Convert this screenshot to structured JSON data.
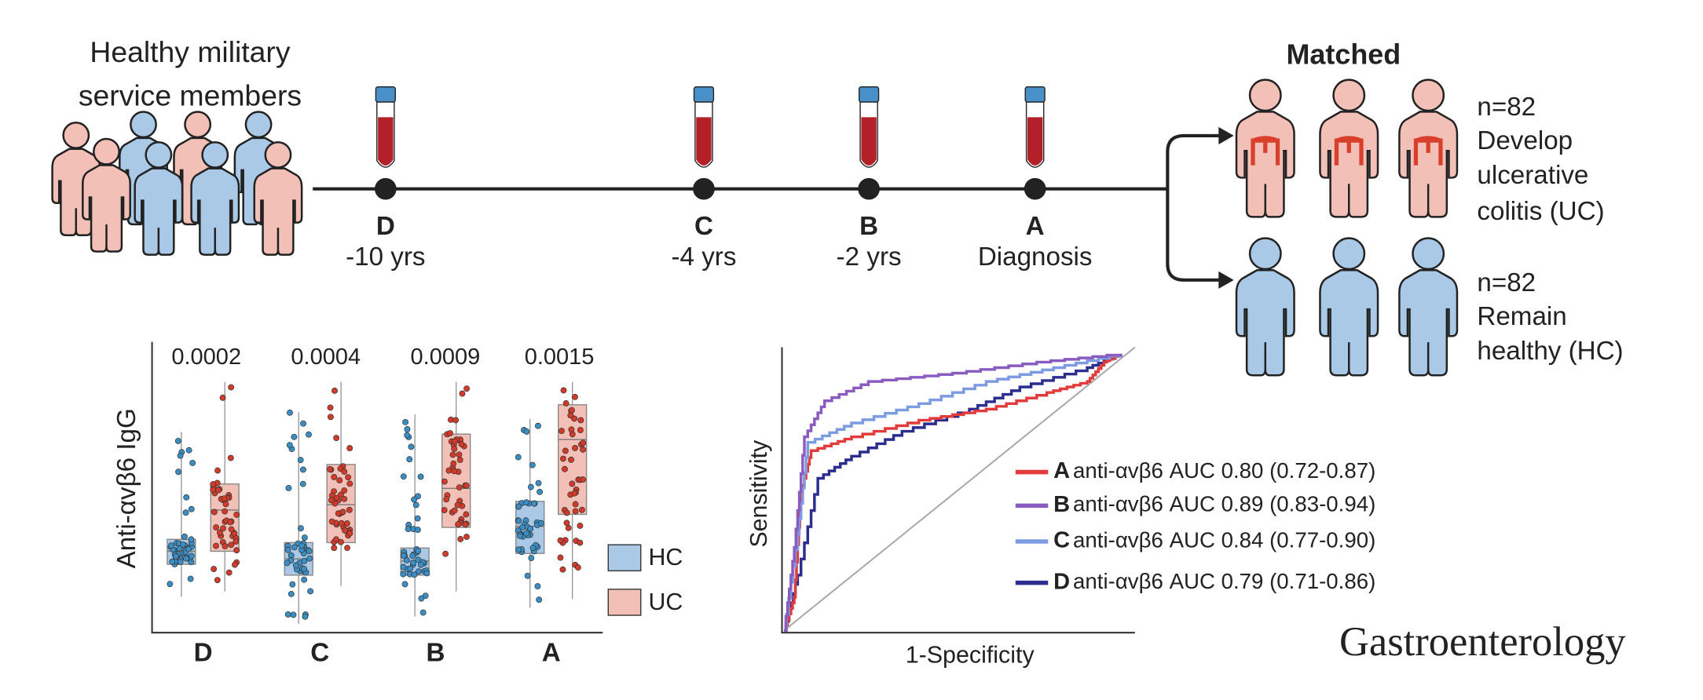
{
  "cohort": {
    "title": [
      "Healthy military",
      "service members"
    ]
  },
  "timeline": {
    "points": [
      {
        "letter": "D",
        "label": "-10 yrs"
      },
      {
        "letter": "C",
        "label": "-4 yrs"
      },
      {
        "letter": "B",
        "label": "-2 yrs"
      },
      {
        "letter": "A",
        "label": "Diagnosis"
      }
    ]
  },
  "outcomes": {
    "title": "Matched",
    "groups": [
      {
        "n": "n=82",
        "lines": [
          "Develop",
          "ulcerative",
          "colitis (UC)"
        ]
      },
      {
        "n": "n=82",
        "lines": [
          "Remain",
          "healthy (HC)"
        ]
      }
    ]
  },
  "boxplot": {
    "y_label": "Anti-αvβ6 IgG",
    "p_values": [
      "0.0002",
      "0.0004",
      "0.0009",
      "0.0015"
    ],
    "groups": [
      "D",
      "C",
      "B",
      "A"
    ],
    "legend": [
      "HC",
      "UC"
    ]
  },
  "roc": {
    "x_label": "1-Specificity",
    "y_label": "Sensitivity",
    "legend": [
      {
        "letter": "A",
        "text": "anti-αvβ6 AUC 0.80 (0.72-0.87)"
      },
      {
        "letter": "B",
        "text": "anti-αvβ6 AUC 0.89 (0.83-0.94)"
      },
      {
        "letter": "C",
        "text": "anti-αvβ6 AUC 0.84 (0.77-0.90)"
      },
      {
        "letter": "D",
        "text": "anti-αvβ6 AUC 0.79 (0.71-0.86)"
      }
    ]
  },
  "journal": "Gastroenterology"
}
